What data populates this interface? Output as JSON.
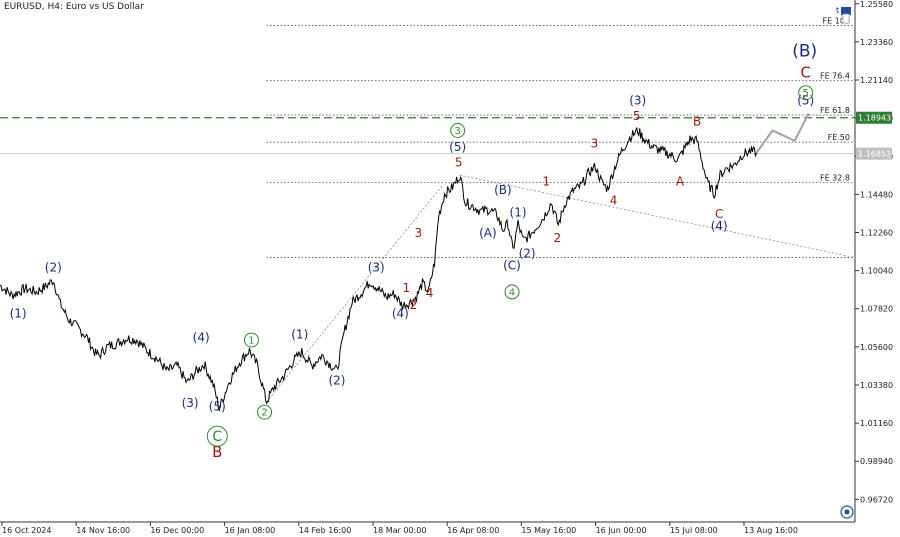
{
  "chart_data": {
    "type": "line",
    "title": "EURUSD, H4:  Euro vs US Dollar",
    "current_price_label": "1.18943",
    "last_price_label": "1.16852",
    "yticks": [
      "1.25580",
      "1.23360",
      "1.21140",
      "1.18920",
      "1.16700",
      "1.14480",
      "1.12260",
      "1.10040",
      "1.07820",
      "1.05600",
      "1.03380",
      "1.01160",
      "0.98940",
      "0.96720"
    ],
    "xticks": [
      "16 Oct 2024",
      "14 Nov 16:00",
      "16 Dec 00:00",
      "16 Jan 08:00",
      "14 Feb 16:00",
      "18 Mar 00:00",
      "16 Apr 08:00",
      "15 May 16:00",
      "16 Jun 00:00",
      "15 Jul 08:00",
      "13 Aug 16:00"
    ],
    "series": [
      {
        "values": [
          [
            0,
            1.092
          ],
          [
            12,
            1.086
          ],
          [
            25,
            1.09
          ],
          [
            36,
            1.088
          ],
          [
            45,
            1.091
          ],
          [
            53,
            1.095
          ],
          [
            60,
            1.081
          ],
          [
            68,
            1.072
          ],
          [
            76,
            1.068
          ],
          [
            86,
            1.062
          ],
          [
            95,
            1.052
          ],
          [
            99,
            1.051
          ],
          [
            106,
            1.056
          ],
          [
            116,
            1.058
          ],
          [
            126,
            1.061
          ],
          [
            136,
            1.06
          ],
          [
            146,
            1.054
          ],
          [
            156,
            1.049
          ],
          [
            166,
            1.042
          ],
          [
            176,
            1.045
          ],
          [
            186,
            1.035
          ],
          [
            194,
            1.041
          ],
          [
            203,
            1.046
          ],
          [
            212,
            1.034
          ],
          [
            218,
            1.02
          ],
          [
            228,
            1.036
          ],
          [
            238,
            1.047
          ],
          [
            248,
            1.054
          ],
          [
            256,
            1.045
          ],
          [
            265,
            1.024
          ],
          [
            272,
            1.032
          ],
          [
            282,
            1.039
          ],
          [
            292,
            1.048
          ],
          [
            300,
            1.053
          ],
          [
            310,
            1.045
          ],
          [
            320,
            1.051
          ],
          [
            328,
            1.046
          ],
          [
            335,
            1.042
          ],
          [
            342,
            1.064
          ],
          [
            350,
            1.082
          ],
          [
            360,
            1.088
          ],
          [
            368,
            1.094
          ],
          [
            376,
            1.09
          ],
          [
            384,
            1.085
          ],
          [
            392,
            1.087
          ],
          [
            400,
            1.08
          ],
          [
            408,
            1.082
          ],
          [
            414,
            1.085
          ],
          [
            420,
            1.093
          ],
          [
            426,
            1.088
          ],
          [
            432,
            1.105
          ],
          [
            436,
            1.132
          ],
          [
            442,
            1.145
          ],
          [
            450,
            1.149
          ],
          [
            457,
            1.156
          ],
          [
            463,
            1.14
          ],
          [
            470,
            1.138
          ],
          [
            478,
            1.135
          ],
          [
            486,
            1.136
          ],
          [
            494,
            1.133
          ],
          [
            500,
            1.124
          ],
          [
            505,
            1.128
          ],
          [
            510,
            1.112
          ],
          [
            515,
            1.128
          ],
          [
            520,
            1.118
          ],
          [
            525,
            1.12
          ],
          [
            532,
            1.125
          ],
          [
            540,
            1.131
          ],
          [
            548,
            1.14
          ],
          [
            555,
            1.127
          ],
          [
            562,
            1.14
          ],
          [
            570,
            1.147
          ],
          [
            578,
            1.15
          ],
          [
            586,
            1.158
          ],
          [
            592,
            1.161
          ],
          [
            598,
            1.152
          ],
          [
            604,
            1.148
          ],
          [
            612,
            1.162
          ],
          [
            618,
            1.17
          ],
          [
            626,
            1.178
          ],
          [
            634,
            1.182
          ],
          [
            642,
            1.176
          ],
          [
            650,
            1.172
          ],
          [
            658,
            1.17
          ],
          [
            666,
            1.168
          ],
          [
            674,
            1.165
          ],
          [
            680,
            1.171
          ],
          [
            686,
            1.177
          ],
          [
            693,
            1.176
          ],
          [
            698,
            1.164
          ],
          [
            703,
            1.152
          ],
          [
            710,
            1.145
          ],
          [
            716,
            1.156
          ],
          [
            722,
            1.16
          ],
          [
            730,
            1.162
          ],
          [
            738,
            1.168
          ],
          [
            746,
            1.17
          ],
          [
            752,
            1.169
          ]
        ]
      },
      {
        "values": [
          [
            752,
            1.169
          ],
          [
            768,
            1.182
          ],
          [
            790,
            1.176
          ],
          [
            804,
            1.192
          ]
        ]
      }
    ],
    "ylim": [
      0.954,
      1.258
    ],
    "xlim": [
      0,
      850
    ],
    "fe_levels": [
      {
        "label": "FE 100",
        "price": 1.2431,
        "x_from": 265
      },
      {
        "label": "FE 76.4",
        "price": 1.211,
        "x_from": 265
      },
      {
        "label": "FE 61.8",
        "price": 1.191,
        "x_from": 265
      },
      {
        "label": "FE 50",
        "price": 1.1752,
        "x_from": 265
      },
      {
        "label": "FE 32.8",
        "price": 1.1517,
        "x_from": 265
      }
    ],
    "wave_labels": [
      {
        "text": "(2)",
        "bar": 53,
        "price": 1.1,
        "color": "#1a2a80",
        "size": 12
      },
      {
        "text": "(1)",
        "bar": 18,
        "price": 1.073,
        "color": "#1a2a80",
        "size": 12
      },
      {
        "text": "(4)",
        "bar": 200,
        "price": 1.059,
        "color": "#1a2a80",
        "size": 12
      },
      {
        "text": "(3)",
        "bar": 189,
        "price": 1.021,
        "color": "#1a2a80",
        "size": 12
      },
      {
        "text": "(5)",
        "bar": 216,
        "price": 1.019,
        "color": "#1a2a80",
        "size": 12
      },
      {
        "text": "B",
        "bar": 216,
        "price": 0.992,
        "color": "#a01810",
        "size": 15
      },
      {
        "text": "(1)",
        "bar": 298,
        "price": 1.061,
        "color": "#1a2a80",
        "size": 12
      },
      {
        "text": "(2)",
        "bar": 335,
        "price": 1.034,
        "color": "#1a2a80",
        "size": 12
      },
      {
        "text": "(3)",
        "bar": 374,
        "price": 1.1,
        "color": "#1a2a80",
        "size": 12
      },
      {
        "text": "(4)",
        "bar": 398,
        "price": 1.073,
        "color": "#1a2a80",
        "size": 12
      },
      {
        "text": "1",
        "bar": 404,
        "price": 1.088,
        "color": "#a01810",
        "size": 12
      },
      {
        "text": "2",
        "bar": 411,
        "price": 1.078,
        "color": "#a01810",
        "size": 12
      },
      {
        "text": "3",
        "bar": 416,
        "price": 1.12,
        "color": "#a01810",
        "size": 12
      },
      {
        "text": "4",
        "bar": 427,
        "price": 1.085,
        "color": "#a01810",
        "size": 12
      },
      {
        "text": "5",
        "bar": 456,
        "price": 1.161,
        "color": "#a01810",
        "size": 12
      },
      {
        "text": "(5)",
        "bar": 455,
        "price": 1.17,
        "color": "#1a2a80",
        "size": 12
      },
      {
        "text": "(B)",
        "bar": 500,
        "price": 1.145,
        "color": "#1a2a80",
        "size": 12
      },
      {
        "text": "(1)",
        "bar": 515,
        "price": 1.132,
        "color": "#1a2a80",
        "size": 12
      },
      {
        "text": "(A)",
        "bar": 485,
        "price": 1.12,
        "color": "#1a2a80",
        "size": 12
      },
      {
        "text": "(2)",
        "bar": 524,
        "price": 1.108,
        "color": "#1a2a80",
        "size": 12
      },
      {
        "text": "(C)",
        "bar": 509,
        "price": 1.101,
        "color": "#1a2a80",
        "size": 12
      },
      {
        "text": "1",
        "bar": 543,
        "price": 1.15,
        "color": "#a01810",
        "size": 12
      },
      {
        "text": "2",
        "bar": 554,
        "price": 1.117,
        "color": "#a01810",
        "size": 12
      },
      {
        "text": "3",
        "bar": 591,
        "price": 1.172,
        "color": "#a01810",
        "size": 12
      },
      {
        "text": "4",
        "bar": 610,
        "price": 1.139,
        "color": "#a01810",
        "size": 12
      },
      {
        "text": "5",
        "bar": 633,
        "price": 1.188,
        "color": "#a01810",
        "size": 12
      },
      {
        "text": "(3)",
        "bar": 634,
        "price": 1.197,
        "color": "#1a2a80",
        "size": 12
      },
      {
        "text": "B",
        "bar": 693,
        "price": 1.185,
        "color": "#a01810",
        "size": 12
      },
      {
        "text": "A",
        "bar": 676,
        "price": 1.15,
        "color": "#a01810",
        "size": 12
      },
      {
        "text": "C",
        "bar": 715,
        "price": 1.131,
        "color": "#a01810",
        "size": 12
      },
      {
        "text": "(4)",
        "bar": 715,
        "price": 1.124,
        "color": "#1a2a80",
        "size": 12
      },
      {
        "text": "(5)",
        "bar": 801,
        "price": 1.197,
        "color": "#1a2a80",
        "size": 12
      },
      {
        "text": "C",
        "bar": 801,
        "price": 1.213,
        "color": "#a01810",
        "size": 15
      },
      {
        "text": "(B)",
        "bar": 800,
        "price": 1.225,
        "color": "#1a2a80",
        "size": 17
      }
    ],
    "circled_labels": [
      {
        "text": "1",
        "bar": 250,
        "price": 1.06,
        "r": 7
      },
      {
        "text": "2",
        "bar": 263,
        "price": 1.018,
        "r": 7
      },
      {
        "text": "3",
        "bar": 455,
        "price": 1.182,
        "r": 7
      },
      {
        "text": "4",
        "bar": 509,
        "price": 1.088,
        "r": 7
      },
      {
        "text": "5",
        "bar": 801,
        "price": 1.204,
        "r": 7
      },
      {
        "text": "C",
        "bar": 216,
        "price": 1.004,
        "r": 10
      }
    ],
    "triangle_lines": [
      {
        "from": [
          265,
          1.024
        ],
        "to": [
          440,
          1.15
        ]
      },
      {
        "from": [
          457,
          1.156
        ],
        "to": [
          850,
          1.108
        ]
      }
    ],
    "bottom_line_price": 1.108
  },
  "colors": {
    "price_line": "#000000",
    "projection": "#a8a8a8",
    "level_line": "#555555",
    "current_price_bg": "#2e7d32",
    "last_price_bg": "#c0c0c0",
    "wave_blue": "#1a2a80",
    "wave_red": "#a01810",
    "circle_green": "#2e8b2e"
  },
  "icons": {
    "top_right": "trade-icon",
    "bottom_right": "settings-icon"
  },
  "corner_letter": "t"
}
